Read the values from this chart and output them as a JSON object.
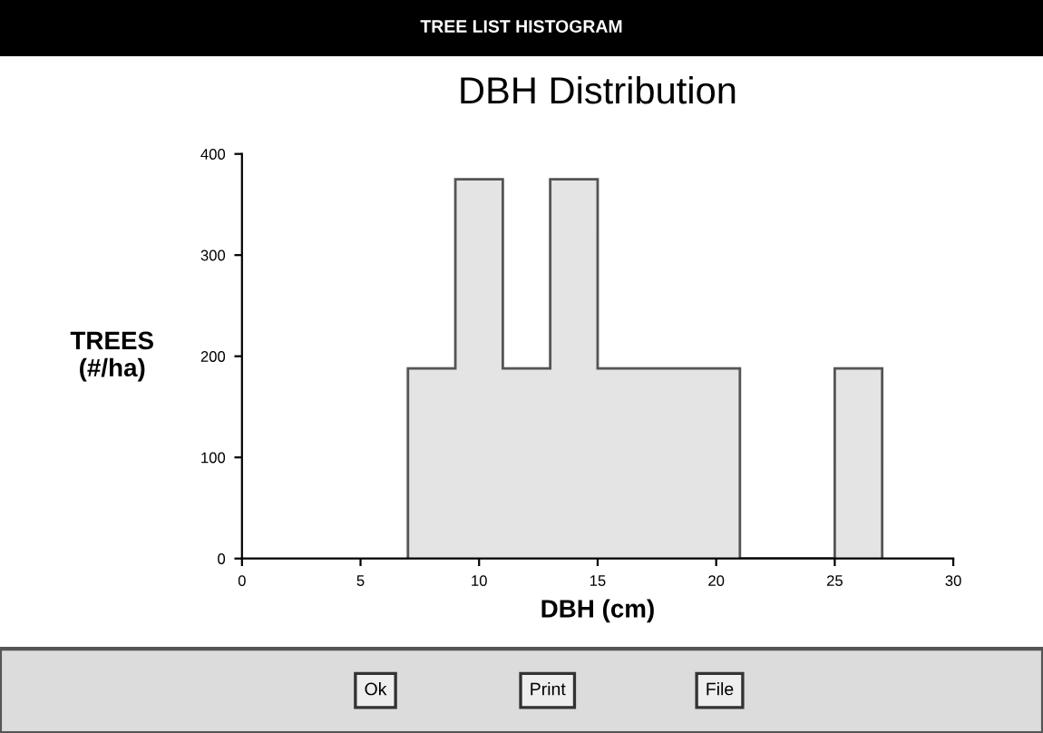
{
  "chart_data": {
    "type": "histogram",
    "title": "DBH Distribution",
    "xlabel": "DBH (cm)",
    "ylabel": "TREES\n(#/ha)",
    "bins": [
      7,
      9,
      11,
      13,
      15,
      17,
      19,
      21,
      23,
      25,
      27
    ],
    "values": [
      188,
      375,
      188,
      375,
      188,
      188,
      188,
      0,
      0,
      188
    ],
    "color": "#e4e4e4",
    "xlim": [
      0,
      30
    ],
    "xticks": [
      0,
      5,
      10,
      15,
      20,
      25,
      30
    ],
    "ylim": [
      0,
      400
    ],
    "yticks": [
      0,
      100,
      200,
      300,
      400
    ],
    "grid": false,
    "legend": false,
    "annotations": [
      "TREE LIST HISTOGRAM",
      "Ok",
      "Print",
      "File"
    ]
  }
}
